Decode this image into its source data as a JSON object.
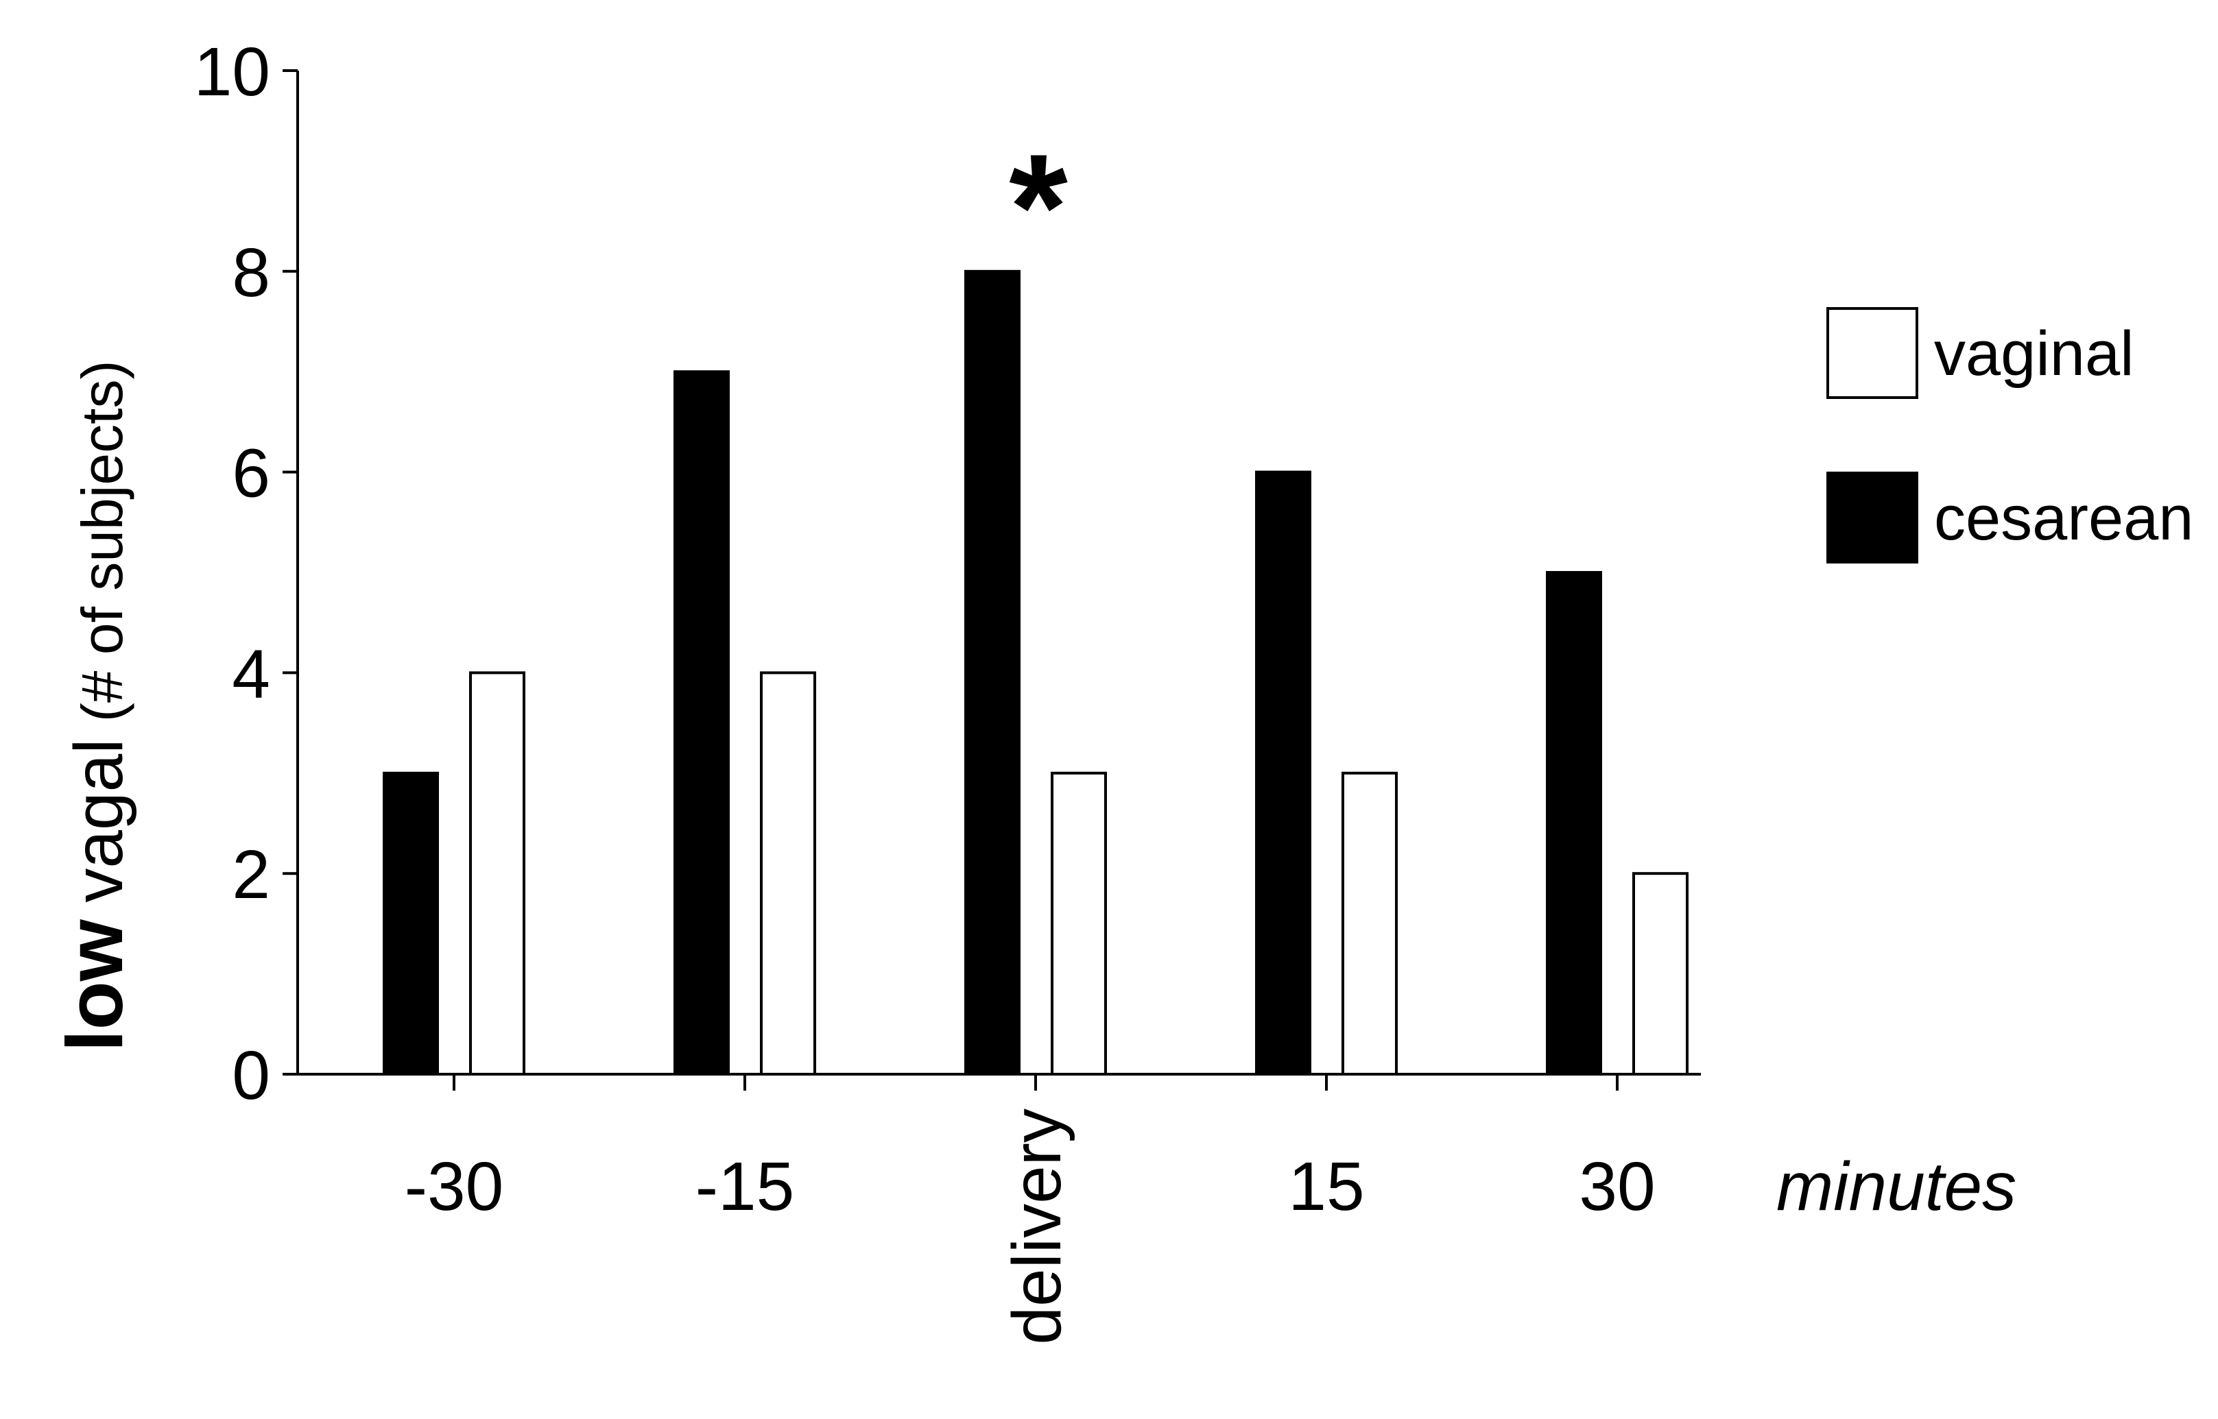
{
  "chart_data": {
    "type": "bar",
    "categories": [
      "-30",
      "-15",
      "delivery",
      "15",
      "30"
    ],
    "x_unit_label": "minutes",
    "ylabel": {
      "bold": "low",
      "regular": "vagal",
      "small": "(# of subjects)"
    },
    "ylim": [
      0,
      10
    ],
    "yticks": [
      0,
      2,
      4,
      6,
      8,
      10
    ],
    "grid": false,
    "legend_position": "right",
    "series": [
      {
        "name": "cesarean",
        "color": "#000000",
        "values": [
          3,
          7,
          8,
          6,
          5
        ]
      },
      {
        "name": "vaginal",
        "color": "#ffffff",
        "values": [
          4,
          4,
          3,
          3,
          2
        ]
      }
    ],
    "legend_order": [
      "vaginal",
      "cesarean"
    ],
    "annotations": [
      {
        "category": "delivery",
        "text": "*"
      }
    ]
  }
}
